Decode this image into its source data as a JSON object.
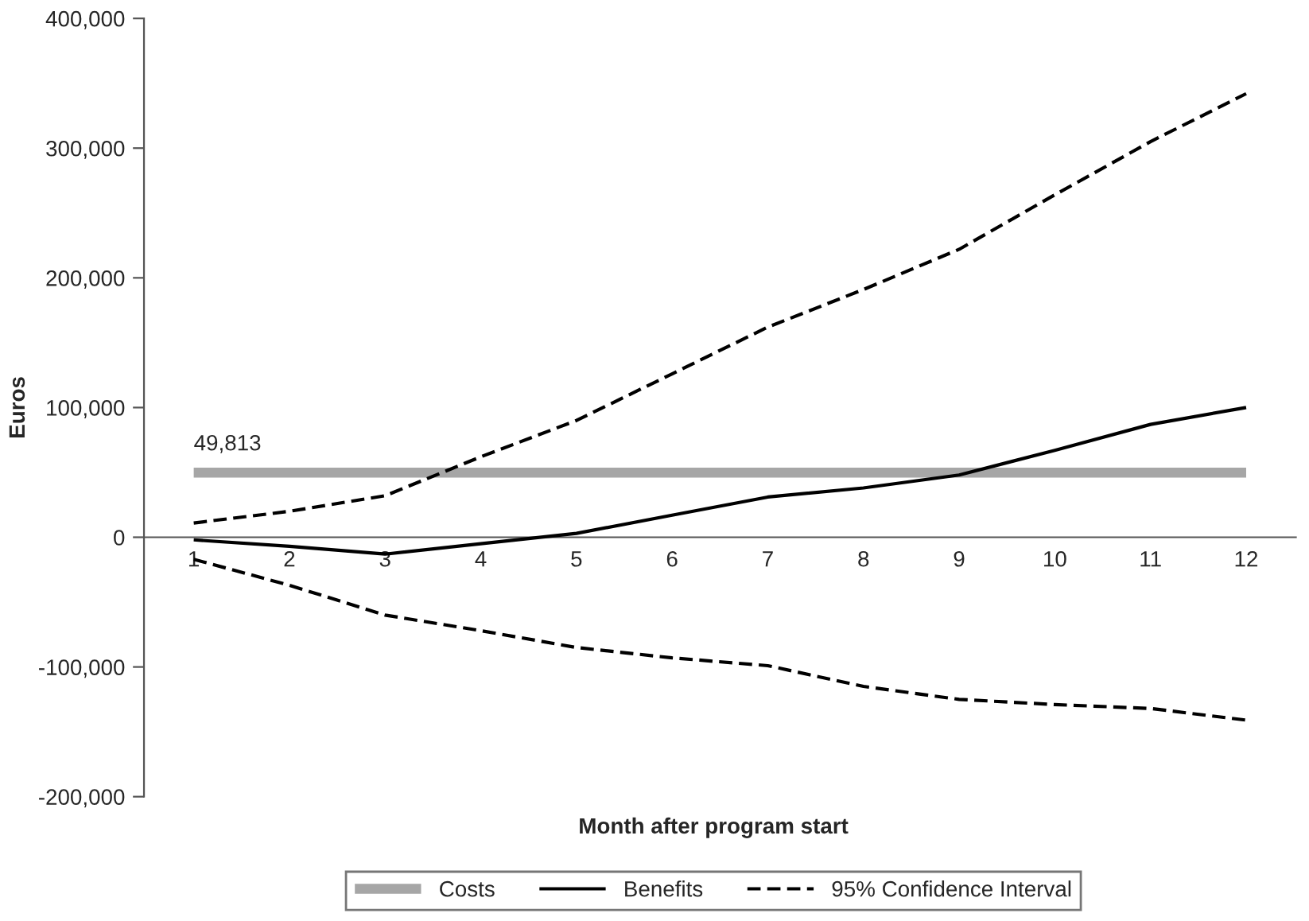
{
  "chart_data": {
    "type": "line",
    "xlabel": "Month after program start",
    "ylabel": "Euros",
    "categories": [
      "1",
      "2",
      "3",
      "4",
      "5",
      "6",
      "7",
      "8",
      "9",
      "10",
      "11",
      "12"
    ],
    "series": [
      {
        "name": "Costs",
        "color": "#a6a6a6",
        "line_style": "solid",
        "values": [
          49813,
          49813,
          49813,
          49813,
          49813,
          49813,
          49813,
          49813,
          49813,
          49813,
          49813,
          49813
        ],
        "value_labels": [
          "49,813",
          null,
          null,
          null,
          null,
          null,
          null,
          null,
          null,
          null,
          null,
          null
        ]
      },
      {
        "name": "Benefits",
        "color": "#000000",
        "line_style": "solid",
        "values": [
          -2000,
          -7000,
          -13000,
          -5000,
          3000,
          17000,
          31000,
          38000,
          48000,
          67000,
          87000,
          100000
        ]
      },
      {
        "name": "95% Confidence Interval",
        "color": "#000000",
        "line_style": "dashed",
        "values": [
          11000,
          20000,
          32000,
          62000,
          90000,
          126000,
          162000,
          191000,
          222000,
          264000,
          305000,
          342000
        ]
      },
      {
        "color": "#000000",
        "line_style": "dashed",
        "values": [
          -17000,
          -37000,
          -60000,
          -72000,
          -85000,
          -93000,
          -99000,
          -115000,
          -125000,
          -129000,
          -132000,
          -141000
        ]
      }
    ],
    "ylim": [
      -200000,
      400000
    ],
    "yticks": [
      {
        "value": -200000,
        "label": "-200,000"
      },
      {
        "value": -100000,
        "label": "-100,000"
      },
      0,
      {
        "value": 100000,
        "label": "100,000"
      },
      {
        "value": 200000,
        "label": "200,000"
      },
      {
        "value": 300000,
        "label": "300,000"
      },
      {
        "value": 400000,
        "label": "400,000"
      }
    ],
    "grid": false,
    "legend": "bottom",
    "marker": "none"
  }
}
